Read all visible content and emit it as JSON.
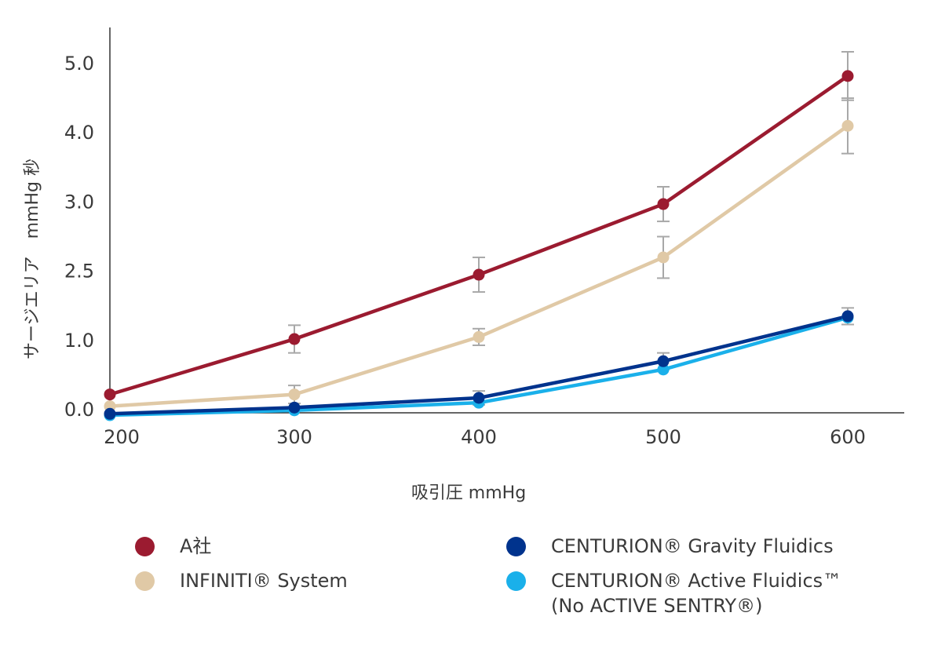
{
  "chart_data": {
    "type": "line",
    "xlabel": "吸引圧 mmHg",
    "ylabel": "サージエリア　mmHg 秒",
    "x": [
      200,
      300,
      400,
      500,
      600
    ],
    "xticks": [
      "200",
      "300",
      "400",
      "500",
      "600"
    ],
    "yticks": [
      "0.0",
      "1.0",
      "2.5",
      "3.0",
      "4.0",
      "5.0"
    ],
    "ylim": [
      0,
      5.5
    ],
    "grid": false,
    "legend_position": "bottom",
    "series": [
      {
        "name": "A社",
        "color": "#9b1b30",
        "values": [
          0.22,
          1.02,
          1.95,
          2.97,
          4.82
        ],
        "errors": [
          0,
          0.2,
          0.25,
          0.25,
          0.35
        ]
      },
      {
        "name": "INFINITI® System",
        "color": "#e0c9a6",
        "values": [
          0.05,
          0.22,
          1.05,
          2.2,
          4.1
        ],
        "errors": [
          0,
          0.13,
          0.12,
          0.3,
          0.4
        ]
      },
      {
        "name": "CENTURION® Gravity Fluidics",
        "color": "#00338d",
        "values": [
          -0.06,
          0.03,
          0.17,
          0.7,
          1.35
        ],
        "errors": [
          0,
          0,
          0.1,
          0.12,
          0.12
        ]
      },
      {
        "name": "CENTURION® Active Fluidics™\n(No ACTIVE SENTRY®)",
        "color": "#1ab0ea",
        "values": [
          -0.08,
          -0.01,
          0.1,
          0.58,
          1.33
        ],
        "errors": [
          0,
          0,
          0,
          0,
          0
        ]
      }
    ]
  }
}
